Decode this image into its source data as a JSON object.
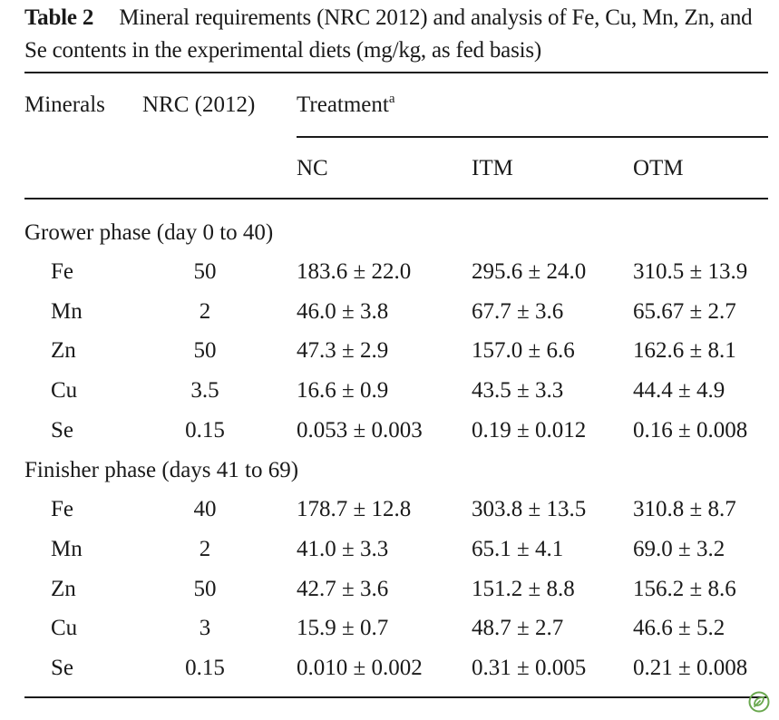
{
  "table": {
    "label": "Table 2",
    "caption": "Mineral requirements (NRC 2012) and analysis of Fe, Cu, Mn, Zn, and Se contents in the experimental diets (mg/kg, as fed basis)",
    "headers": {
      "minerals": "Minerals",
      "nrc": "NRC (2012)",
      "treatment": "Treatment",
      "treatment_sup": "a",
      "nc": "NC",
      "itm": "ITM",
      "otm": "OTM"
    },
    "sections": [
      {
        "title": "Grower phase (day 0 to 40)",
        "rows": [
          {
            "mineral": "Fe",
            "nrc": "50",
            "nc": "183.6 ± 22.0",
            "itm": "295.6 ± 24.0",
            "otm": "310.5 ± 13.9"
          },
          {
            "mineral": "Mn",
            "nrc": "2",
            "nc": "46.0 ± 3.8",
            "itm": "67.7 ± 3.6",
            "otm": "65.67 ± 2.7"
          },
          {
            "mineral": "Zn",
            "nrc": "50",
            "nc": "47.3 ± 2.9",
            "itm": "157.0 ± 6.6",
            "otm": "162.6 ± 8.1"
          },
          {
            "mineral": "Cu",
            "nrc": "3.5",
            "nc": "16.6 ± 0.9",
            "itm": "43.5 ± 3.3",
            "otm": "44.4 ± 4.9"
          },
          {
            "mineral": "Se",
            "nrc": "0.15",
            "nc": "0.053 ± 0.003",
            "itm": "0.19 ± 0.012",
            "otm": "0.16 ± 0.008"
          }
        ]
      },
      {
        "title": "Finisher phase (days 41 to 69)",
        "rows": [
          {
            "mineral": "Fe",
            "nrc": "40",
            "nc": "178.7 ± 12.8",
            "itm": "303.8 ± 13.5",
            "otm": "310.8 ± 8.7"
          },
          {
            "mineral": "Mn",
            "nrc": "2",
            "nc": "41.0 ± 3.3",
            "itm": "65.1 ± 4.1",
            "otm": "69.0 ± 3.2"
          },
          {
            "mineral": "Zn",
            "nrc": "50",
            "nc": "42.7 ± 3.6",
            "itm": "151.2 ± 8.8",
            "otm": "156.2 ± 8.6"
          },
          {
            "mineral": "Cu",
            "nrc": "3",
            "nc": "15.9 ± 0.7",
            "itm": "48.7 ± 2.7",
            "otm": "46.6 ± 5.2"
          },
          {
            "mineral": "Se",
            "nrc": "0.15",
            "nc": "0.010 ± 0.002",
            "itm": "0.31 ± 0.005",
            "otm": "0.21 ± 0.008"
          }
        ]
      }
    ],
    "badge_icon": "leaf-badge-icon",
    "badge_color": "#6aa84f"
  }
}
